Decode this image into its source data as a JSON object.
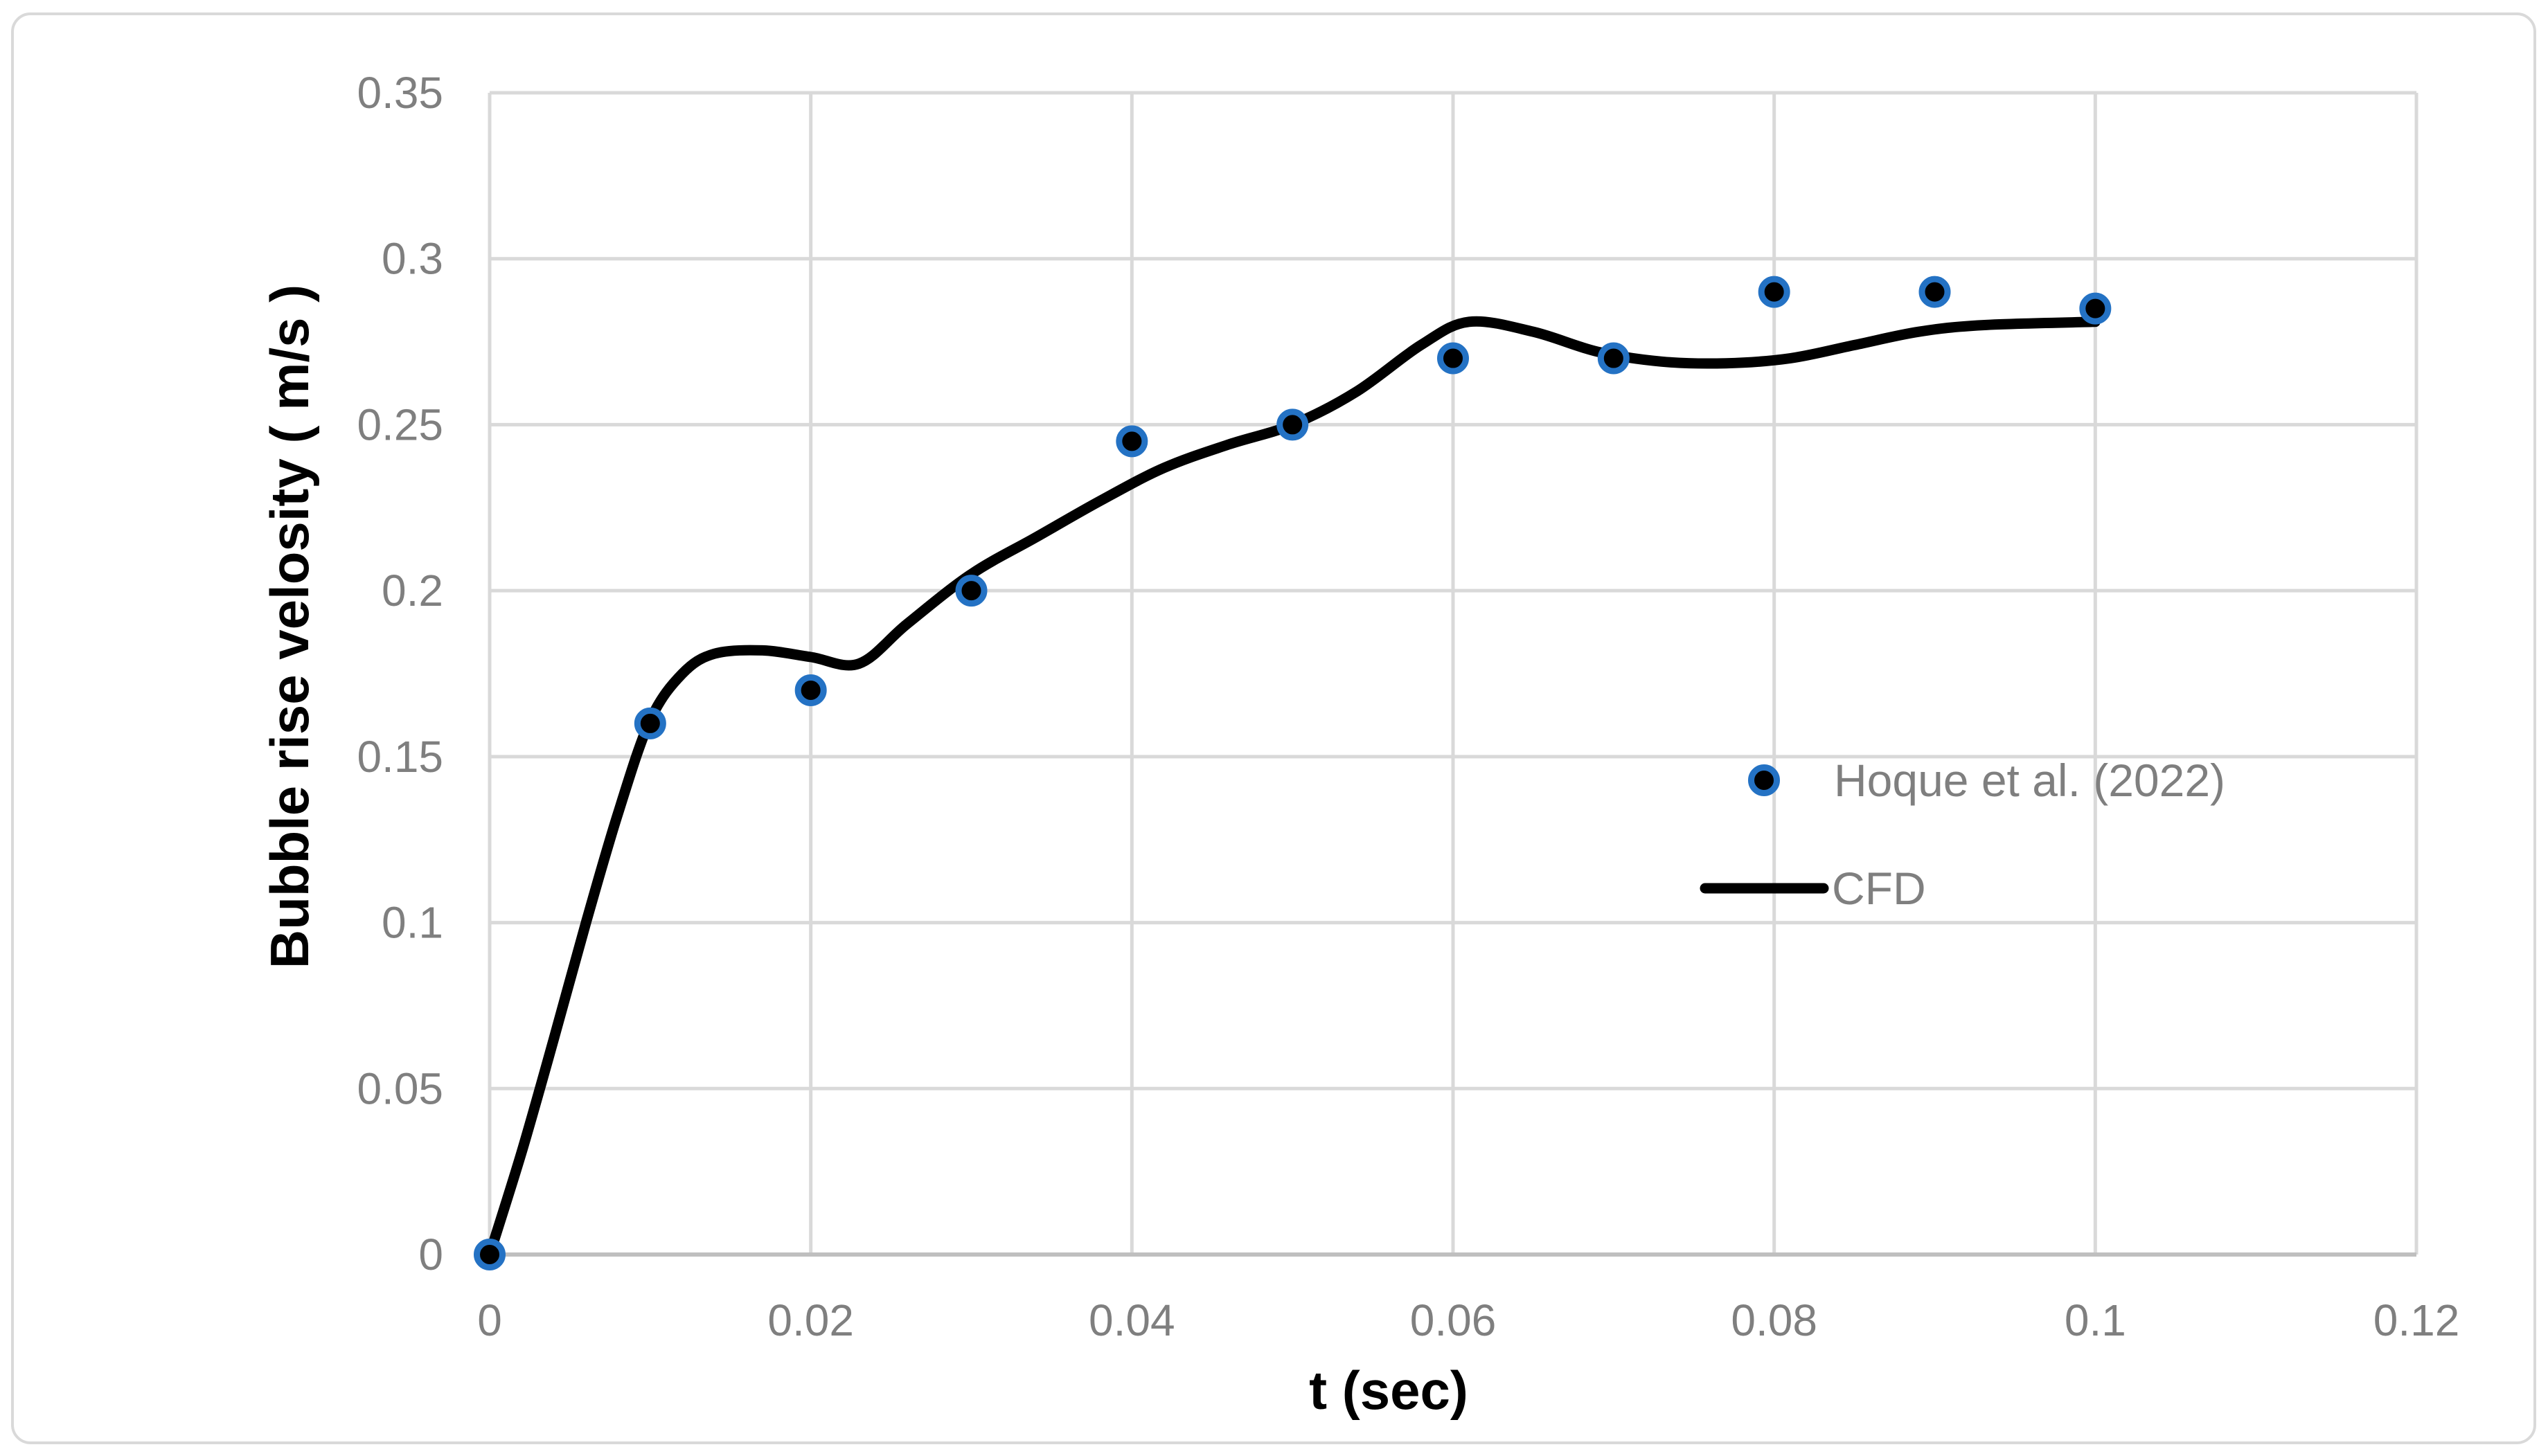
{
  "figure": {
    "background": "#FFFFFF",
    "border_color": "#D9D9D9",
    "gridline_color": "#D9D9D9",
    "axis_line_color": "#BFBFBF",
    "tick_label_color": "#7F7F7F",
    "legend_text_color": "#7F7F7F",
    "marker_ring_color": "#2472C4",
    "marker_fill_color": "#000000",
    "cfd_line_color": "#000000"
  },
  "chart_data": {
    "type": "scatter",
    "title": "",
    "xlabel": "t (sec)",
    "ylabel": "Bubble rise velosity ( m/s )",
    "xlim": [
      0,
      0.12
    ],
    "ylim": [
      0,
      0.35
    ],
    "grid": true,
    "legend_position": "inside right, transparent, no border",
    "x_ticks": [
      0,
      0.02,
      0.04,
      0.06,
      0.08,
      0.1,
      0.12
    ],
    "x_tick_labels": [
      "0",
      "0.02",
      "0.04",
      "0.06",
      "0.08",
      "0.1",
      "0.12"
    ],
    "y_ticks": [
      0,
      0.05,
      0.1,
      0.15,
      0.2,
      0.25,
      0.3,
      0.35
    ],
    "y_tick_labels": [
      "0",
      "0.05",
      "0.1",
      "0.15",
      "0.2",
      "0.25",
      "0.3",
      "0.35"
    ],
    "series": [
      {
        "name": "Hoque et al. (2022)",
        "type": "scatter",
        "marker": "filled circle, black core with blue ring",
        "x": [
          0,
          0.01,
          0.02,
          0.03,
          0.04,
          0.05,
          0.06,
          0.07,
          0.08,
          0.09,
          0.1
        ],
        "y": [
          0,
          0.16,
          0.17,
          0.2,
          0.245,
          0.25,
          0.27,
          0.27,
          0.29,
          0.29,
          0.285
        ]
      },
      {
        "name": "CFD",
        "type": "line",
        "color": "#000000",
        "smooth": true,
        "points": [
          [
            0.0,
            0.0
          ],
          [
            0.002,
            0.031
          ],
          [
            0.004,
            0.065
          ],
          [
            0.006,
            0.1
          ],
          [
            0.008,
            0.133
          ],
          [
            0.01,
            0.161
          ],
          [
            0.012,
            0.175
          ],
          [
            0.014,
            0.181
          ],
          [
            0.017,
            0.182
          ],
          [
            0.02,
            0.18
          ],
          [
            0.023,
            0.178
          ],
          [
            0.026,
            0.19
          ],
          [
            0.03,
            0.205
          ],
          [
            0.034,
            0.216
          ],
          [
            0.038,
            0.227
          ],
          [
            0.042,
            0.237
          ],
          [
            0.046,
            0.244
          ],
          [
            0.05,
            0.25
          ],
          [
            0.054,
            0.26
          ],
          [
            0.058,
            0.274
          ],
          [
            0.061,
            0.281
          ],
          [
            0.065,
            0.278
          ],
          [
            0.069,
            0.272
          ],
          [
            0.073,
            0.269
          ],
          [
            0.077,
            0.2685
          ],
          [
            0.081,
            0.27
          ],
          [
            0.085,
            0.274
          ],
          [
            0.089,
            0.278
          ],
          [
            0.093,
            0.28
          ],
          [
            0.1,
            0.281
          ]
        ]
      }
    ]
  },
  "legend": {
    "items": [
      {
        "label": "Hoque et al. (2022)",
        "swatch": "scatter-marker"
      },
      {
        "label": "CFD",
        "swatch": "line"
      }
    ]
  }
}
